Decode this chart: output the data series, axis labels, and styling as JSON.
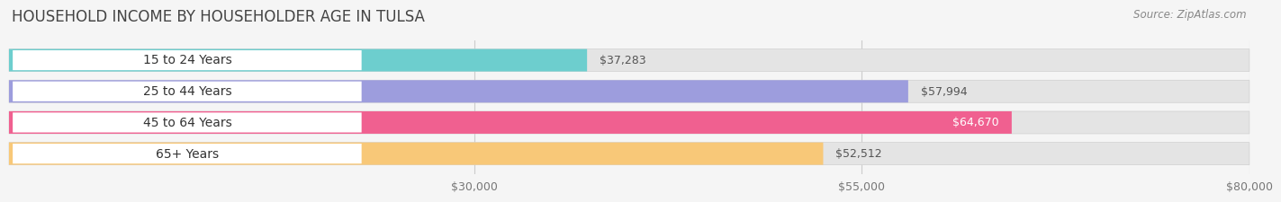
{
  "title": "HOUSEHOLD INCOME BY HOUSEHOLDER AGE IN TULSA",
  "source": "Source: ZipAtlas.com",
  "categories": [
    "15 to 24 Years",
    "25 to 44 Years",
    "45 to 64 Years",
    "65+ Years"
  ],
  "values": [
    37283,
    57994,
    64670,
    52512
  ],
  "labels": [
    "$37,283",
    "$57,994",
    "$64,670",
    "$52,512"
  ],
  "bar_colors": [
    "#6dcece",
    "#9d9ddd",
    "#f06090",
    "#f8c878"
  ],
  "label_inside": [
    false,
    false,
    true,
    false
  ],
  "xlim": [
    0,
    80000
  ],
  "xticks": [
    30000,
    55000,
    80000
  ],
  "xticklabels": [
    "$30,000",
    "$55,000",
    "$80,000"
  ],
  "title_fontsize": 12,
  "cat_fontsize": 10,
  "val_fontsize": 9,
  "tick_fontsize": 9,
  "source_fontsize": 8.5,
  "bar_height": 0.72,
  "background_color": "#f5f5f5",
  "bar_bg_color": "#e4e4e4",
  "white_label_bg": "#ffffff",
  "grid_color": "#cccccc"
}
